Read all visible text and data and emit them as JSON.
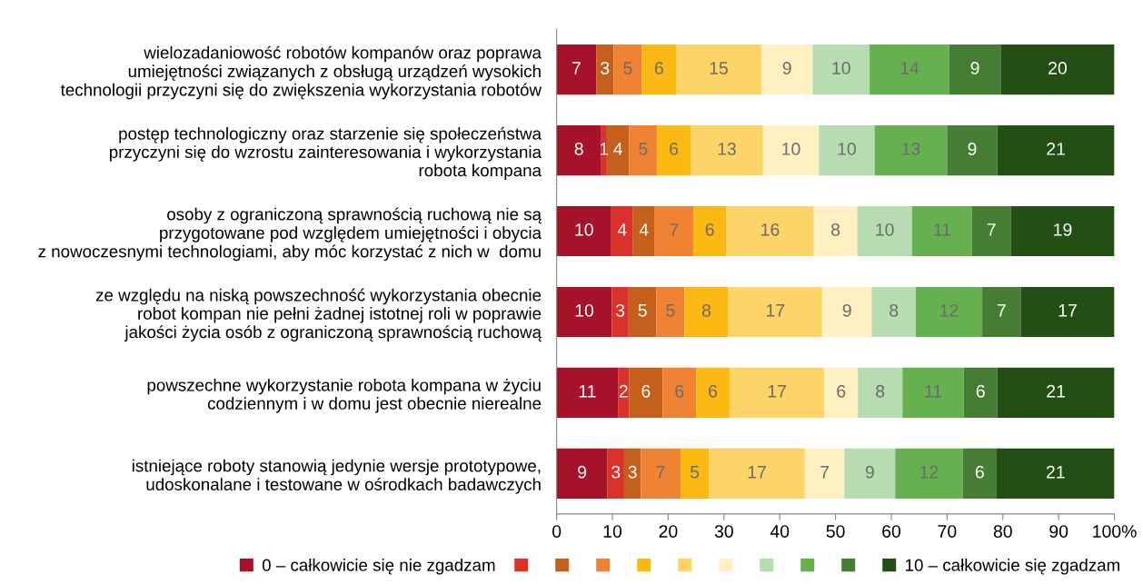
{
  "chart_data": {
    "type": "bar",
    "orientation": "horizontal",
    "stacked": true,
    "categories": [
      "wielozadaniowość robotów kompanów oraz poprawa\numiejętności związanych z obsługą urządzeń wysokich\ntechnologii przyczyni się do zwiększenia wykorzystania robotów",
      "postęp technologiczny oraz starzenie się społeczeństwa\nprzyczyni się do wzrostu zainteresowania i wykorzystania\nrobota kompana",
      "osoby z ograniczoną sprawnością ruchową nie są\nprzygotowane pod względem umiejętności i obycia\nz nowoczesnymi technologiami, aby móc korzystać z nich w  domu",
      "ze względu na niską powszechność wykorzystania obecnie\nrobot kompan nie pełni żadnej istotnej roli w poprawie\njakości życia osób z ograniczoną sprawnością ruchową",
      "powszechne wykorzystanie robota kompana w życiu\ncodziennym i w domu jest obecnie nierealne",
      "istniejące roboty stanowią jedynie wersje prototypowe,\nudoskonalane i testowane w ośrodkach badawczych"
    ],
    "series": [
      {
        "name": "0 – całkowicie się nie zgadzam",
        "color": "#a6122a",
        "values": [
          7.1,
          8,
          9.8,
          9.9,
          11,
          9.1
        ],
        "value_labels": [
          "7",
          "8",
          "10",
          "10",
          "11",
          "9"
        ]
      },
      {
        "color": "#d9322a",
        "values": [
          0,
          1,
          3.9,
          3.0,
          2,
          3.0
        ],
        "value_labels": [
          null,
          "1",
          "4",
          "3",
          "2",
          "3"
        ]
      },
      {
        "color": "#c55f1c",
        "values": [
          3.1,
          4,
          3.9,
          5.0,
          6,
          3.0
        ],
        "value_labels": [
          "3",
          "4",
          "4",
          "5",
          "6",
          "3"
        ]
      },
      {
        "color": "#f08233",
        "values": [
          5.1,
          5,
          6.9,
          5.0,
          6,
          7.1
        ],
        "value_labels": [
          "5",
          "5",
          "7",
          "5",
          "6",
          "7"
        ]
      },
      {
        "color": "#fdb913",
        "values": [
          6.1,
          6,
          5.9,
          7.9,
          6,
          5.1
        ],
        "value_labels": [
          "6",
          "6",
          "6",
          "8",
          "6",
          "5"
        ]
      },
      {
        "color": "#fdd467",
        "values": [
          15.3,
          13,
          15.7,
          16.8,
          17,
          17.2
        ],
        "value_labels": [
          "15",
          "13",
          "16",
          "17",
          "17",
          "17"
        ]
      },
      {
        "color": "#fef0c1",
        "values": [
          9.2,
          10,
          7.8,
          8.9,
          6,
          7.1
        ],
        "value_labels": [
          "9",
          "10",
          "8",
          "9",
          "6",
          "7"
        ]
      },
      {
        "color": "#b7dcb1",
        "values": [
          10.2,
          10,
          9.8,
          7.9,
          8,
          9.1
        ],
        "value_labels": [
          "10",
          "10",
          "10",
          "8",
          "8",
          "9"
        ]
      },
      {
        "color": "#66b04f",
        "values": [
          14.3,
          13,
          10.8,
          11.9,
          11,
          12.1
        ],
        "value_labels": [
          "14",
          "13",
          "11",
          "12",
          "11",
          "12"
        ]
      },
      {
        "color": "#447d33",
        "values": [
          9.2,
          9,
          6.9,
          6.9,
          6,
          6.1
        ],
        "value_labels": [
          "9",
          "9",
          "7",
          "7",
          "6",
          "6"
        ]
      },
      {
        "name": "10 – całkowicie się zgadzam",
        "color": "#234f14",
        "values": [
          20.4,
          21,
          18.6,
          16.8,
          21,
          21.1
        ],
        "value_labels": [
          "20",
          "21",
          "19",
          "17",
          "21",
          "21"
        ]
      }
    ],
    "xlim": [
      0,
      100
    ],
    "xticks": [
      0,
      10,
      20,
      30,
      40,
      50,
      60,
      70,
      80,
      90,
      {
        "value": 100,
        "label": "100%"
      }
    ],
    "grid": false,
    "legend": "bottom"
  }
}
